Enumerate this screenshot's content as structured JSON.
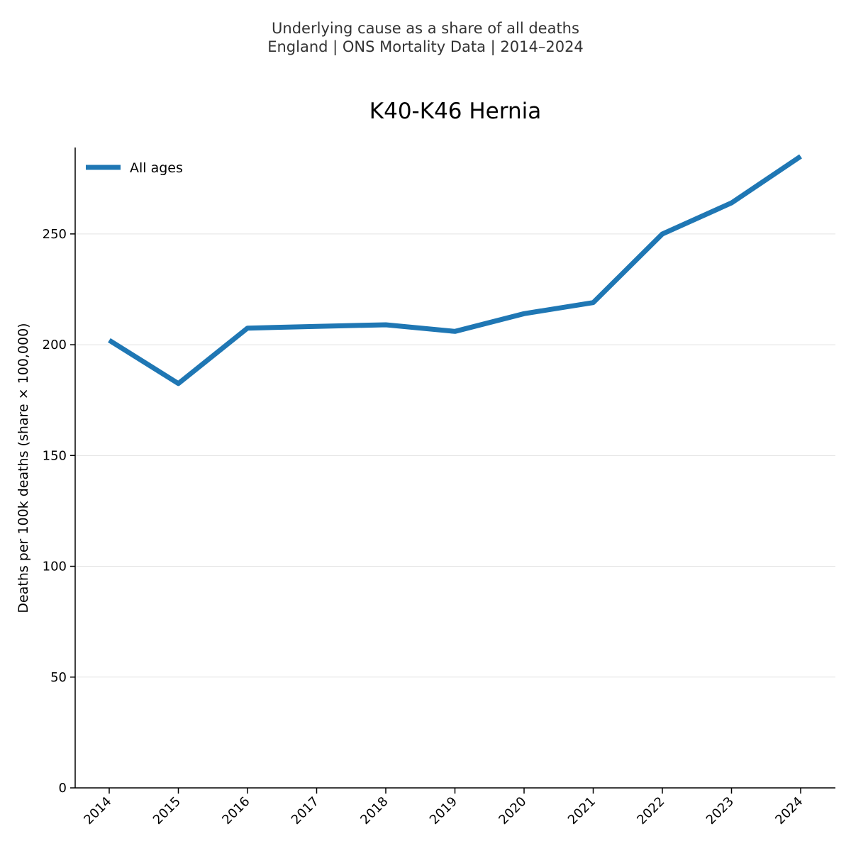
{
  "chart_data": {
    "type": "line",
    "suptitle_lines": [
      "Underlying cause as a share of all deaths",
      "England | ONS Mortality Data | 2014–2024"
    ],
    "title": "K40-K46 Hernia",
    "xlabel": "",
    "ylabel": "Deaths per 100k deaths (share × 100,000)",
    "categories": [
      "2014",
      "2015",
      "2016",
      "2017",
      "2018",
      "2019",
      "2020",
      "2021",
      "2022",
      "2023",
      "2024"
    ],
    "series": [
      {
        "name": "All ages",
        "color": "#1f77b4",
        "values": [
          202,
          182.5,
          207.5,
          208.3,
          209,
          206,
          214,
          219,
          250,
          264,
          285
        ]
      }
    ],
    "yticks": [
      0,
      50,
      100,
      150,
      200,
      250
    ],
    "ylim": [
      0,
      289
    ],
    "grid": "y",
    "legend_position": "top-left"
  }
}
